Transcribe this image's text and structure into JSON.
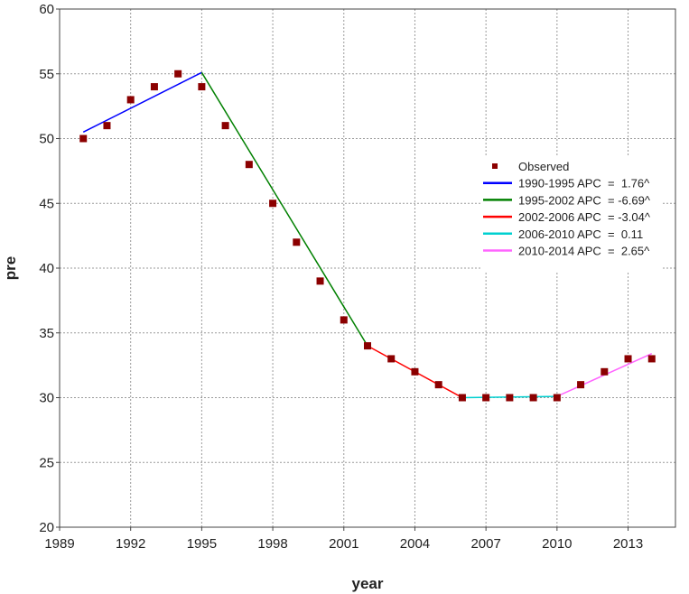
{
  "chart_data": {
    "type": "line",
    "xlabel": "year",
    "ylabel": "pre",
    "xlim": [
      1989,
      2015
    ],
    "ylim": [
      20,
      60
    ],
    "x_ticks": [
      1989,
      1992,
      1995,
      1998,
      2001,
      2004,
      2007,
      2010,
      2013
    ],
    "y_ticks": [
      20,
      25,
      30,
      35,
      40,
      45,
      50,
      55,
      60
    ],
    "grid": true,
    "legend_position": "right",
    "observed": {
      "name": "Observed",
      "color": "#8b0000",
      "x": [
        1990,
        1991,
        1992,
        1993,
        1994,
        1995,
        1996,
        1997,
        1998,
        1999,
        2000,
        2001,
        2002,
        2003,
        2004,
        2005,
        2006,
        2007,
        2008,
        2009,
        2010,
        2011,
        2012,
        2013,
        2014
      ],
      "y": [
        50,
        51,
        53,
        54,
        55,
        54,
        51,
        48,
        45,
        42,
        39,
        36,
        34,
        33,
        32,
        31,
        30,
        30,
        30,
        30,
        30,
        31,
        32,
        33,
        33
      ]
    },
    "series": [
      {
        "name": "1990-1995 APC  =  1.76^",
        "color": "#0000ff",
        "x": [
          1990,
          1995
        ],
        "y": [
          50.5,
          55.1
        ]
      },
      {
        "name": "1995-2002 APC  = -6.69^",
        "color": "#008000",
        "x": [
          1995,
          2002
        ],
        "y": [
          55.1,
          34.0
        ]
      },
      {
        "name": "2002-2006 APC  = -3.04^",
        "color": "#ff0000",
        "x": [
          2002,
          2006
        ],
        "y": [
          34.0,
          30.0
        ]
      },
      {
        "name": "2006-2010 APC  =  0.11",
        "color": "#00d0d0",
        "x": [
          2006,
          2010
        ],
        "y": [
          30.0,
          30.1
        ]
      },
      {
        "name": "2010-2014 APC  =  2.65^",
        "color": "#ff66ff",
        "x": [
          2010,
          2014
        ],
        "y": [
          30.1,
          33.4
        ]
      }
    ]
  }
}
